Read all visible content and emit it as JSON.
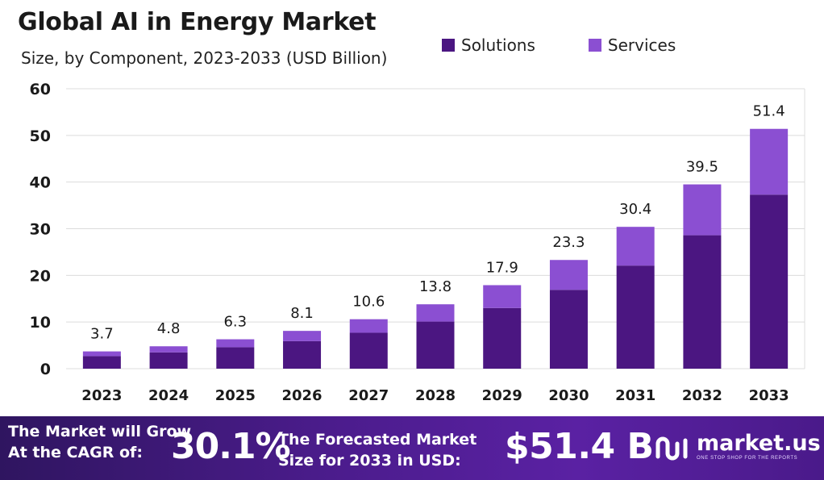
{
  "title": "Global AI in Energy Market",
  "subtitle": "Size, by Component, 2023-2033 (USD Billion)",
  "colors": {
    "solutions": "#4b1681",
    "services": "#8b4fd2",
    "grid": "#dcdcdc"
  },
  "chart_data": {
    "type": "bar",
    "stacked": true,
    "categories": [
      "2023",
      "2024",
      "2025",
      "2026",
      "2027",
      "2028",
      "2029",
      "2030",
      "2031",
      "2032",
      "2033"
    ],
    "series": [
      {
        "name": "Solutions",
        "values": [
          2.7,
          3.5,
          4.6,
          5.9,
          7.7,
          10.1,
          13.0,
          16.9,
          22.1,
          28.6,
          37.3
        ]
      },
      {
        "name": "Services",
        "values": [
          1.0,
          1.3,
          1.7,
          2.2,
          2.9,
          3.7,
          4.9,
          6.4,
          8.3,
          10.9,
          14.1
        ]
      }
    ],
    "totals": [
      "3.7",
      "4.8",
      "6.3",
      "8.1",
      "10.6",
      "13.8",
      "17.9",
      "23.3",
      "30.4",
      "39.5",
      "51.4"
    ],
    "ylim": [
      0,
      60
    ],
    "yticks": [
      0,
      10,
      20,
      30,
      40,
      50,
      60
    ],
    "grid": "horizontal",
    "legend_position": "top-right"
  },
  "footer": {
    "cagr_text": "The Market will Grow At the CAGR of:",
    "cagr_value": "30.1%",
    "forecast_text": "The Forecasted Market Size for 2033 in USD:",
    "forecast_value": "$51.4 B",
    "brand_name": "market.us",
    "brand_tagline": "ONE STOP SHOP FOR THE REPORTS",
    "logo_icon": "market-us-logo-icon"
  }
}
